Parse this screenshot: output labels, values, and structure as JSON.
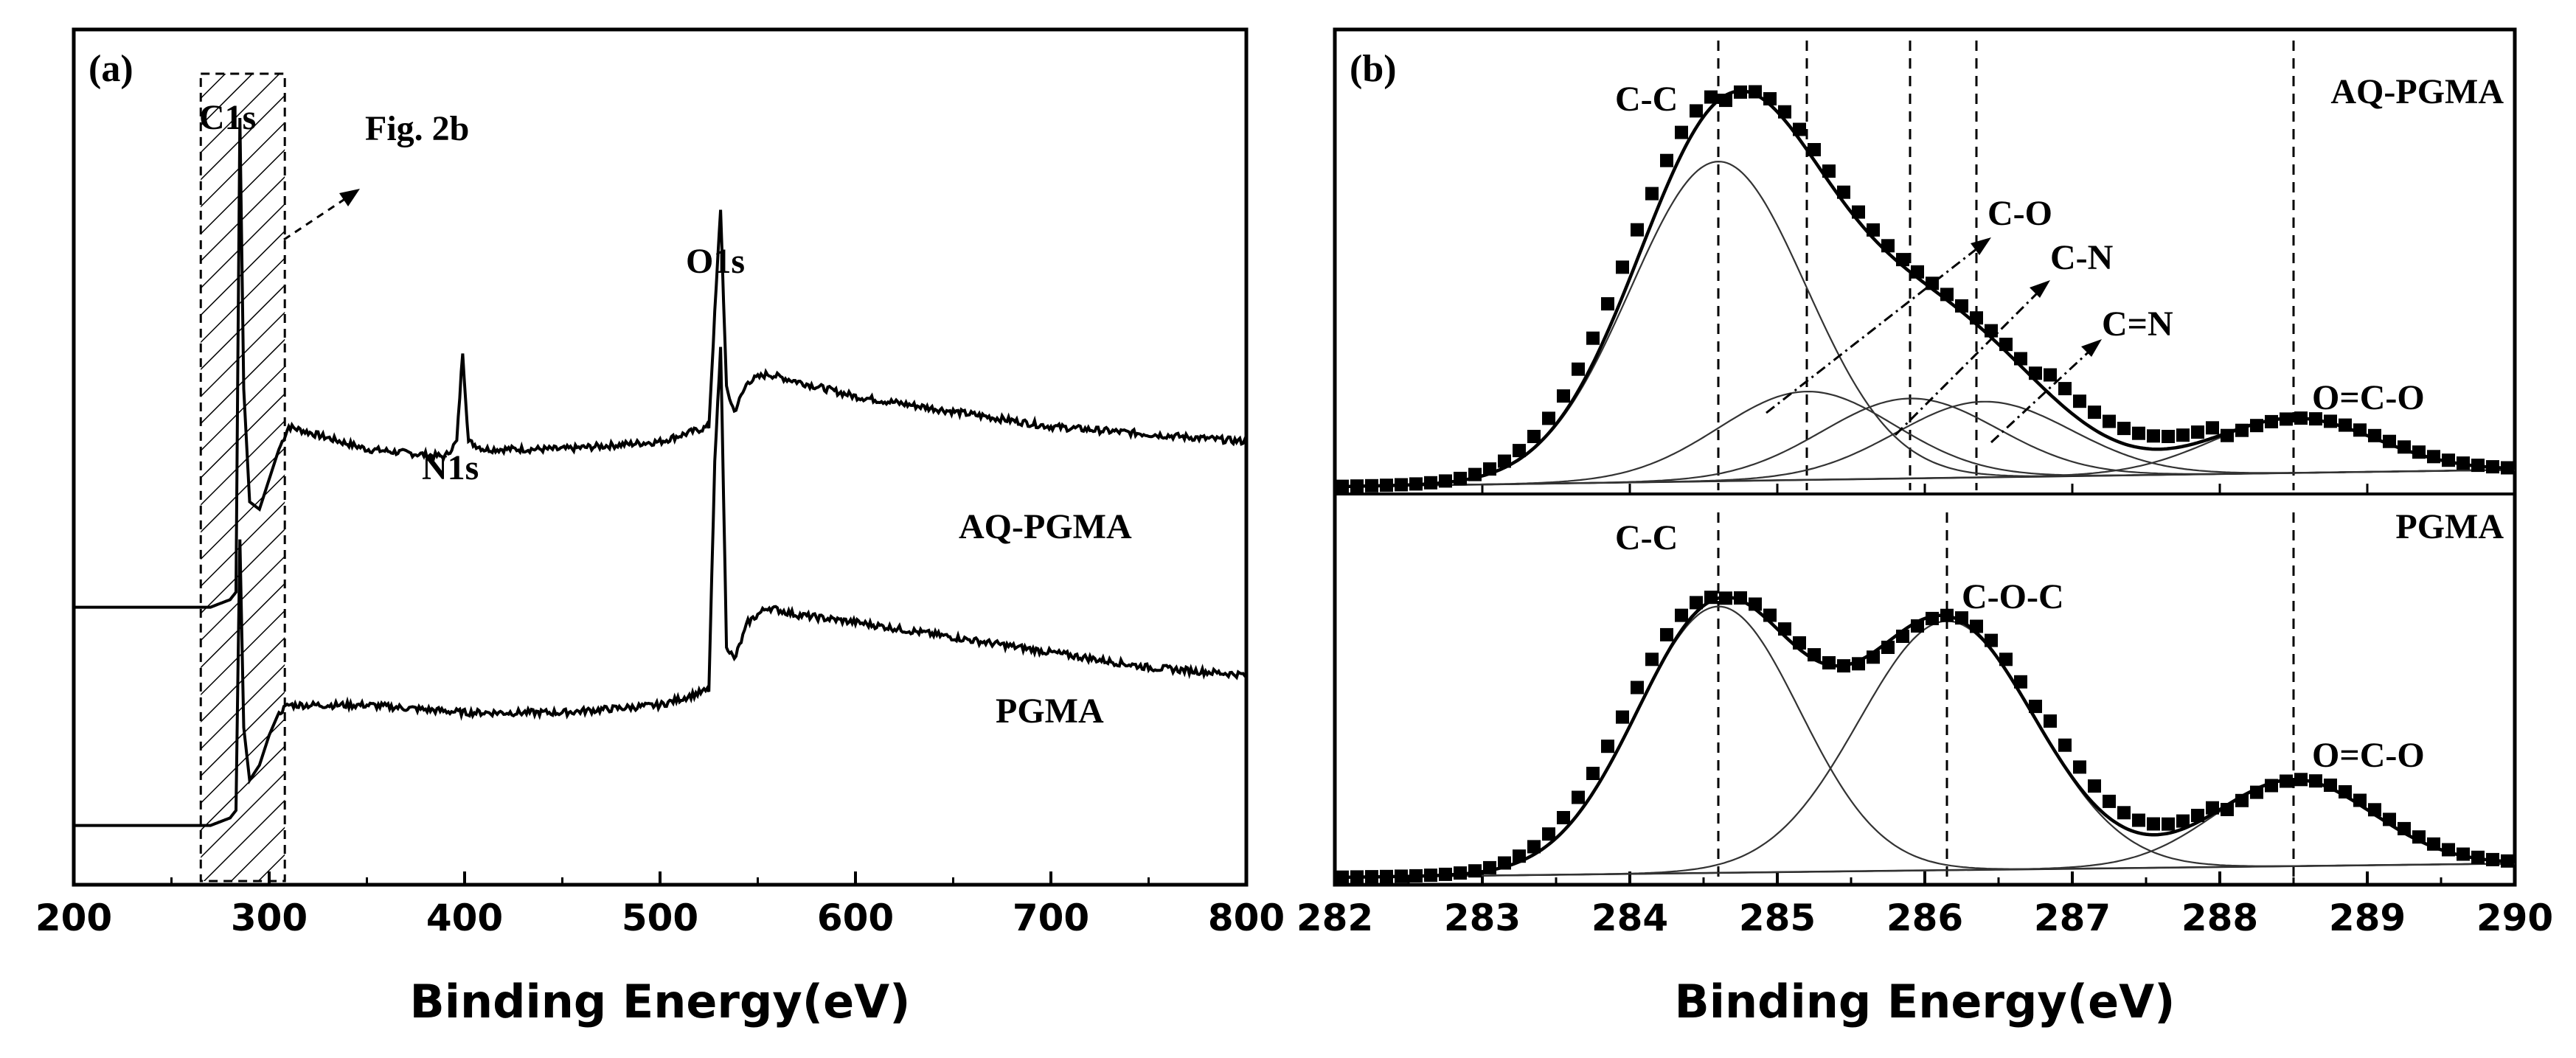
{
  "chart_data": [
    {
      "type": "line",
      "panel_label": "(a)",
      "title": "",
      "xlabel": "Binding Energy(eV)",
      "ylabel": "",
      "xlim": [
        200,
        800
      ],
      "ylim": [
        0,
        100
      ],
      "xticks": [
        200,
        300,
        400,
        500,
        600,
        700,
        800
      ],
      "tick_labels": [
        "200",
        "300",
        "400",
        "500",
        "600",
        "700",
        "800"
      ],
      "series": [
        {
          "name": "AQ-PGMA",
          "x": [
            200,
            260,
            270,
            280,
            283,
            285,
            287,
            290,
            295,
            300,
            305,
            310,
            350,
            390,
            396,
            399,
            402,
            410,
            450,
            500,
            525,
            528,
            531,
            534,
            538,
            545,
            555,
            570,
            600,
            650,
            700,
            750,
            800
          ],
          "y": [
            31,
            31,
            31,
            32,
            33,
            96,
            60,
            45,
            44,
            48,
            52,
            55,
            52,
            51,
            53,
            65,
            53,
            52,
            52,
            53,
            55,
            70,
            84,
            60,
            57,
            61,
            62,
            61,
            59,
            57,
            55,
            54,
            53
          ]
        },
        {
          "name": "PGMA",
          "x": [
            200,
            260,
            270,
            280,
            283,
            285,
            287,
            290,
            295,
            300,
            305,
            310,
            350,
            400,
            450,
            500,
            525,
            528,
            531,
            534,
            538,
            545,
            555,
            570,
            600,
            650,
            700,
            750,
            800
          ],
          "y": [
            2,
            2,
            2,
            3,
            4,
            40,
            15,
            8,
            10,
            14,
            17,
            18,
            18,
            17,
            17,
            18,
            20,
            50,
            66,
            26,
            24,
            29,
            31,
            30,
            29,
            27,
            25,
            23,
            22
          ]
        }
      ],
      "annotations": [
        {
          "text": "C1s",
          "x": 285
        },
        {
          "text": "Fig. 2b",
          "x": 340
        },
        {
          "text": "N1s",
          "x": 399
        },
        {
          "text": "O1s",
          "x": 531
        }
      ],
      "highlight_box": {
        "x_range": [
          265,
          308
        ],
        "label": "Fig. 2b"
      }
    },
    {
      "type": "line",
      "panel_label": "(b)",
      "title": "",
      "xlabel": "Binding Energy(eV)",
      "ylabel": "",
      "xlim": [
        282,
        290
      ],
      "xticks": [
        282,
        283,
        284,
        285,
        286,
        287,
        288,
        289,
        290
      ],
      "tick_labels": [
        "282",
        "283",
        "284",
        "285",
        "286",
        "287",
        "288",
        "289",
        "290"
      ],
      "subplots": [
        {
          "name": "AQ-PGMA",
          "components": [
            {
              "name": "C-C",
              "center": 284.6,
              "amplitude": 0.76,
              "fwhm": 1.4
            },
            {
              "name": "C-O",
              "center": 285.2,
              "amplitude": 0.21,
              "fwhm": 1.4
            },
            {
              "name": "C-N",
              "center": 285.9,
              "amplitude": 0.19,
              "fwhm": 1.4
            },
            {
              "name": "C=N",
              "center": 286.4,
              "amplitude": 0.18,
              "fwhm": 1.4
            },
            {
              "name": "O=C-O",
              "center": 288.5,
              "amplitude": 0.13,
              "fwhm": 1.3
            }
          ],
          "dashed_lines": [
            284.6,
            285.2,
            285.9,
            286.35,
            288.5
          ],
          "labels": [
            "C-C",
            "C-O",
            "C-N",
            "C=N",
            "O=C-O",
            "AQ-PGMA"
          ]
        },
        {
          "name": "PGMA",
          "components": [
            {
              "name": "C-C",
              "center": 284.6,
              "amplitude": 0.77,
              "fwhm": 1.3
            },
            {
              "name": "C-O-C",
              "center": 286.15,
              "amplitude": 0.72,
              "fwhm": 1.4
            },
            {
              "name": "O=C-O",
              "center": 288.5,
              "amplitude": 0.25,
              "fwhm": 1.25
            }
          ],
          "dashed_lines": [
            284.6,
            286.15,
            288.5
          ],
          "labels": [
            "C-C",
            "C-O-C",
            "O=C-O",
            "PGMA"
          ]
        }
      ]
    }
  ]
}
